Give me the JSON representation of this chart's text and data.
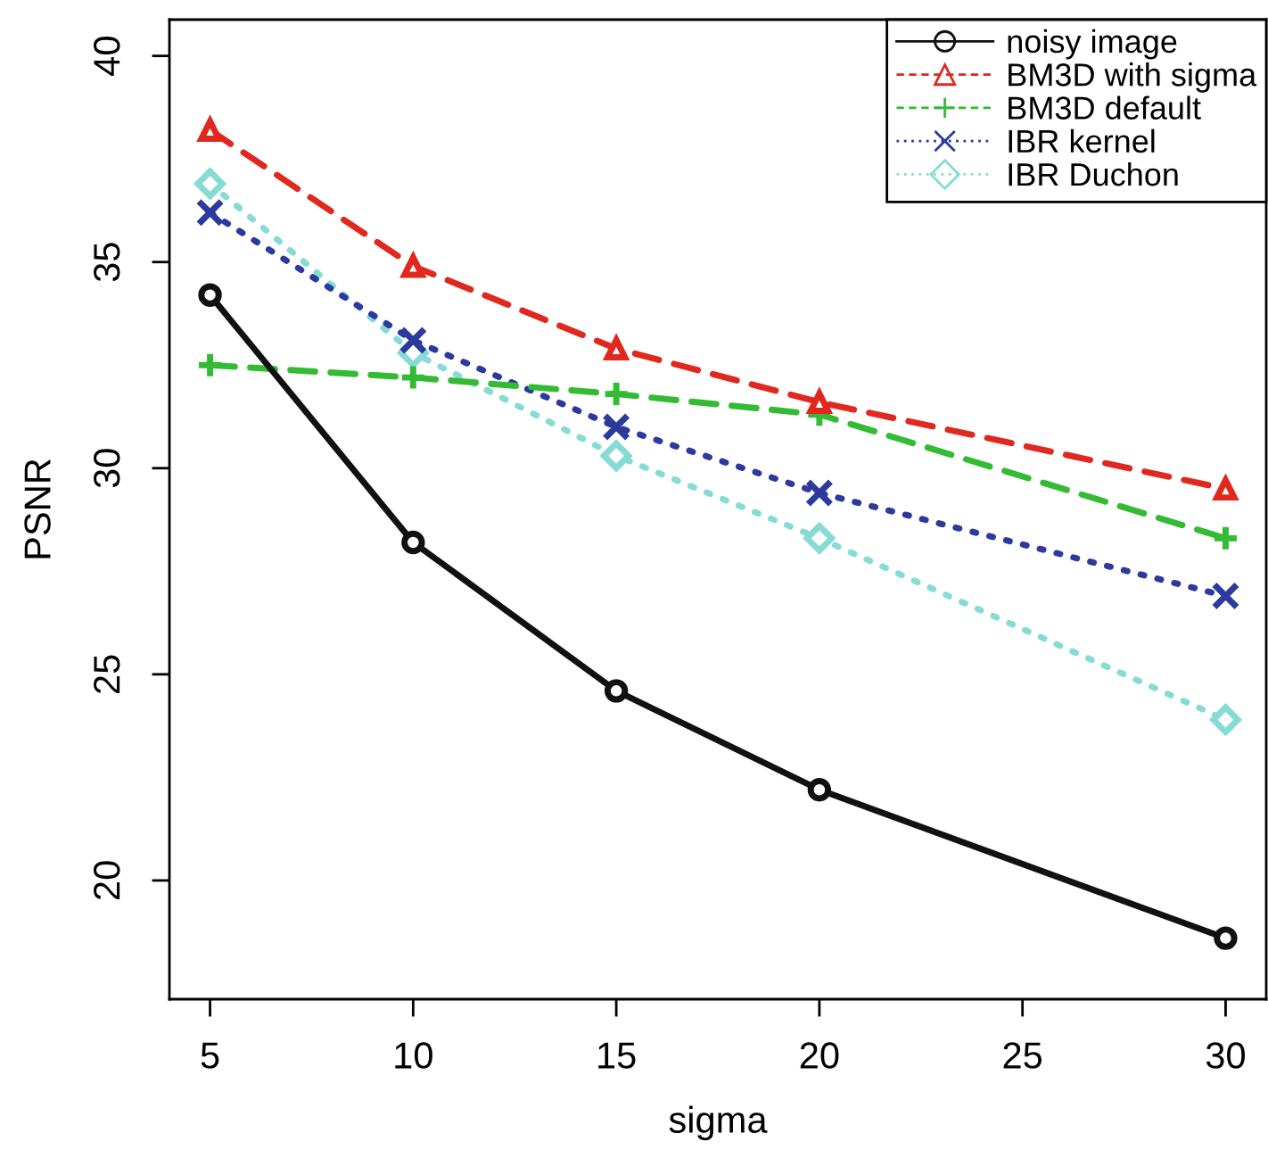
{
  "chart_data": {
    "type": "line",
    "xlabel": "sigma",
    "ylabel": "PSNR",
    "x": [
      5,
      10,
      15,
      20,
      30
    ],
    "xlim": [
      4,
      31
    ],
    "xticks": [
      5,
      10,
      15,
      20,
      25,
      30
    ],
    "ylim": [
      17.12,
      40.88
    ],
    "yticks": [
      20,
      25,
      30,
      35,
      40
    ],
    "grid": false,
    "legend": "top right",
    "series": [
      {
        "name": "noisy image",
        "color": "#111111",
        "marker": "circle",
        "line_style": "solid",
        "values": [
          34.2,
          28.2,
          24.6,
          22.2,
          18.6
        ]
      },
      {
        "name": "BM3D with sigma",
        "color": "#e0281e",
        "marker": "triangle",
        "line_style": "dashed",
        "values": [
          38.2,
          34.9,
          32.9,
          31.6,
          29.5
        ]
      },
      {
        "name": "BM3D default",
        "color": "#33bb33",
        "marker": "cross",
        "line_style": "dashed",
        "values": [
          32.5,
          32.2,
          31.8,
          31.3,
          28.3
        ]
      },
      {
        "name": "IBR kernel",
        "color": "#2b3a9c",
        "marker": "x",
        "line_style": "dotted",
        "values": [
          36.2,
          33.1,
          31.0,
          29.4,
          26.9
        ]
      },
      {
        "name": "IBR Duchon",
        "color": "#86dcd4",
        "marker": "diamond",
        "line_style": "dotted",
        "values": [
          36.9,
          32.8,
          30.3,
          28.3,
          23.9
        ]
      }
    ]
  }
}
